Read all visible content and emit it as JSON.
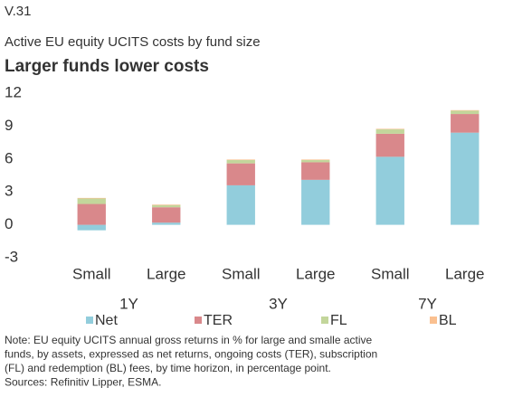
{
  "chart_data": {
    "type": "stacked_bar",
    "label": "V.31",
    "subtitle": "Active EU equity UCITS costs by fund size",
    "title": "Larger funds lower costs",
    "categories": [
      "Small",
      "Large",
      "Small",
      "Large",
      "Small",
      "Large"
    ],
    "groups": [
      "1Y",
      "3Y",
      "7Y"
    ],
    "series": [
      {
        "name": "Net",
        "color": "#92cddc",
        "values": [
          -0.5,
          0.2,
          3.6,
          4.1,
          6.2,
          8.4
        ]
      },
      {
        "name": "TER",
        "color": "#d9888b",
        "values": [
          1.9,
          1.4,
          2.0,
          1.6,
          2.1,
          1.7
        ]
      },
      {
        "name": "FL",
        "color": "#c3d69b",
        "values": [
          0.5,
          0.2,
          0.3,
          0.2,
          0.4,
          0.3
        ]
      },
      {
        "name": "BL",
        "color": "#fac090",
        "values": [
          0.05,
          0.05,
          0.05,
          0.05,
          0.05,
          0.05
        ]
      }
    ],
    "ylim": [
      -3,
      12
    ],
    "yticks": [
      12,
      9,
      6,
      3,
      0,
      -3
    ],
    "notes": [
      "Note: EU equity UCITS annual gross returns in % for large and smalle active",
      "funds, by assets, expressed as net returns, ongoing costs (TER), subscription",
      "(FL) and redemption (BL) fees, by time horizon, in percentage point.",
      "Sources: Refinitiv Lipper, ESMA."
    ]
  }
}
